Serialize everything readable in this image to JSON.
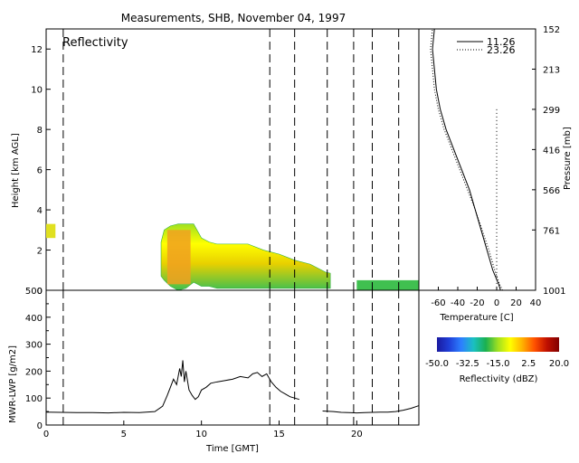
{
  "page": {
    "title": "Measurements, SHB, November 04, 1997",
    "panel_label": "Reflectivity"
  },
  "colors": {
    "frame": "#000000",
    "background": "#ffffff",
    "dashed": "#000000"
  },
  "chart_data": [
    {
      "id": "reflectivity",
      "type": "heatmap",
      "title": "Reflectivity",
      "xlabel": "",
      "ylabel": "Height [km AGL]",
      "xlim": [
        0,
        24
      ],
      "ylim": [
        0,
        13
      ],
      "yticks": [
        0,
        2,
        4,
        6,
        8,
        10,
        12
      ],
      "dashed_times": [
        1.1,
        14.4,
        16.0,
        18.1,
        19.8,
        21.0,
        22.7
      ],
      "cloud_profile": {
        "time": [
          7.4,
          7.6,
          8.0,
          8.5,
          9.0,
          9.5,
          10.0,
          10.5,
          11.0,
          12.0,
          13.0,
          14.0,
          15.0,
          16.0,
          17.0,
          18.0,
          18.3
        ],
        "top": [
          2.4,
          3.0,
          3.2,
          3.3,
          3.3,
          3.3,
          2.6,
          2.4,
          2.3,
          2.3,
          2.3,
          2.0,
          1.8,
          1.5,
          1.3,
          0.9,
          0.85
        ],
        "base": [
          0.7,
          0.5,
          0.2,
          0.0,
          0.1,
          0.4,
          0.2,
          0.2,
          0.1,
          0.1,
          0.1,
          0.1,
          0.1,
          0.1,
          0.1,
          0.1,
          0.1
        ]
      },
      "early_echo": {
        "time": [
          0.0,
          0.6
        ],
        "top": 3.3,
        "base": 2.6
      },
      "late_echo": {
        "time": [
          20.0,
          24.0
        ],
        "top": 0.5,
        "base": 0.0
      }
    },
    {
      "id": "temperature",
      "type": "line",
      "xlabel": "Temperature [C]",
      "ylabel": "Pressure [mb]",
      "xlim": [
        -80,
        40
      ],
      "xticks": [
        -60,
        -40,
        -20,
        0,
        20,
        40
      ],
      "ylim": [
        0,
        13
      ],
      "pressure_ticks": [
        "152",
        "213",
        "299",
        "416",
        "566",
        "761",
        "1001"
      ],
      "pressure_heights": [
        13,
        11,
        9,
        7,
        5,
        3,
        0
      ],
      "series": [
        {
          "name": "11.26",
          "style": "solid",
          "temperature": [
            4,
            2,
            -4,
            -10,
            -16,
            -22,
            -28,
            -36,
            -44,
            -52,
            -58,
            -62,
            -64,
            -66,
            -64
          ],
          "height": [
            0.0,
            0.3,
            1.0,
            2.0,
            3.0,
            4.0,
            5.0,
            6.0,
            7.0,
            8.0,
            9.0,
            10.0,
            11.0,
            12.0,
            13.0
          ]
        },
        {
          "name": "23.26",
          "style": "dotted",
          "temperature": [
            6,
            3,
            -2,
            -8,
            -15,
            -22,
            -30,
            -38,
            -46,
            -54,
            -60,
            -64,
            -66,
            -68,
            -66
          ],
          "height": [
            0.0,
            0.3,
            1.0,
            2.0,
            3.0,
            4.0,
            5.0,
            6.0,
            7.0,
            8.0,
            9.0,
            10.0,
            11.0,
            12.0,
            13.0
          ]
        }
      ],
      "zero_line": 0
    },
    {
      "id": "lwp",
      "type": "line",
      "xlabel": "Time [GMT]",
      "ylabel": "MWR-LWP [g/m2]",
      "xlim": [
        0,
        24
      ],
      "ylim": [
        0,
        500
      ],
      "xticks": [
        0,
        5,
        10,
        15,
        20
      ],
      "yticks": [
        0,
        50,
        100,
        150,
        200,
        250,
        300,
        350,
        400,
        450,
        500
      ],
      "ylabeled_ticks": [
        0,
        100,
        200,
        300,
        400,
        500
      ],
      "dashed_times": [
        1.1,
        14.4,
        16.0,
        18.1,
        19.8,
        21.0,
        22.7
      ],
      "segments": [
        {
          "x": [
            0,
            1,
            2,
            3,
            4,
            5,
            6,
            7,
            7.5,
            7.8,
            8.0,
            8.2,
            8.4,
            8.6,
            8.7,
            8.8,
            8.9,
            9.0,
            9.2,
            9.4,
            9.6,
            9.8,
            10.0,
            10.3,
            10.6,
            11.0,
            11.5,
            12.0,
            12.5,
            13.0,
            13.3,
            13.6,
            13.9,
            14.2,
            14.5,
            14.8,
            15.1,
            15.4,
            15.7,
            16.0,
            16.3
          ],
          "y": [
            48,
            47,
            46,
            46,
            45,
            47,
            46,
            50,
            70,
            110,
            140,
            170,
            150,
            210,
            180,
            240,
            160,
            200,
            130,
            110,
            95,
            105,
            130,
            140,
            155,
            160,
            165,
            170,
            180,
            175,
            190,
            195,
            180,
            190,
            160,
            140,
            125,
            115,
            105,
            100,
            95
          ]
        },
        {
          "x": [
            17.8,
            18.5,
            19.0,
            19.5,
            20.0,
            20.5,
            21.0,
            21.5,
            22.0,
            22.5,
            23.0,
            23.5,
            24.0
          ],
          "y": [
            52,
            50,
            47,
            46,
            45,
            46,
            47,
            48,
            48,
            50,
            55,
            62,
            72
          ]
        }
      ]
    },
    {
      "id": "colorbar",
      "type": "heatmap",
      "title": "Reflectivity (dBZ)",
      "range": [
        -50,
        20
      ],
      "tick_labels": [
        "-50.0",
        "-32.5",
        "-15.0",
        "2.5",
        "20.0"
      ],
      "stops": [
        "#1a1aa0",
        "#1f3fd8",
        "#2d80ff",
        "#1ac0c0",
        "#1ab050",
        "#a0e020",
        "#ffff00",
        "#ffb000",
        "#ff5000",
        "#c01000",
        "#800000"
      ]
    }
  ]
}
